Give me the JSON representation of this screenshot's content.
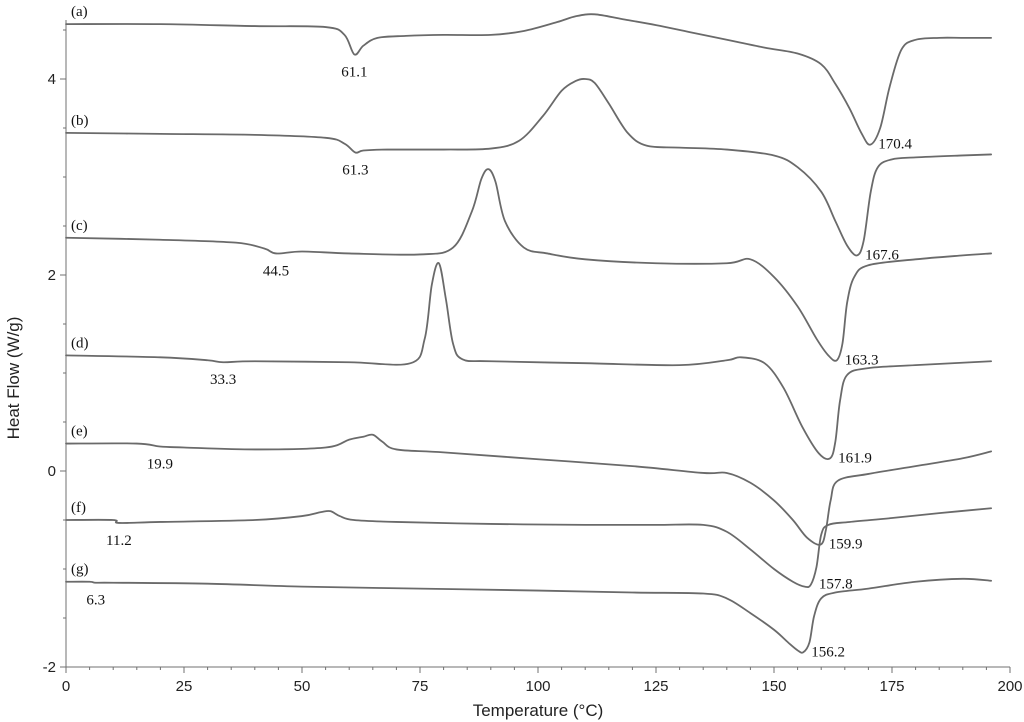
{
  "chart_data": {
    "type": "line",
    "xlabel": "Temperature (°C)",
    "ylabel": "Heat Flow (W/g)",
    "xlim": [
      0,
      200
    ],
    "ylim": [
      -2,
      4.8
    ],
    "xticks": [
      "0",
      "25",
      "50",
      "75",
      "100",
      "125",
      "150",
      "175",
      "200"
    ],
    "yticks": [
      "-2",
      "0",
      "2",
      "4"
    ],
    "grid": false,
    "series": [
      {
        "name": "(a)",
        "label_text": "61.1",
        "peak_label": "170.4",
        "x": [
          0,
          20,
          40,
          55,
          59,
          61.1,
          63,
          66,
          72,
          80,
          90,
          97,
          104,
          108,
          112,
          118,
          125,
          132,
          140,
          148,
          155,
          160,
          163,
          166,
          168.5,
          170.4,
          172.5,
          174.5,
          177,
          180,
          185,
          190,
          196
        ],
        "values": [
          4.56,
          4.56,
          4.54,
          4.53,
          4.45,
          4.25,
          4.34,
          4.42,
          4.44,
          4.45,
          4.45,
          4.49,
          4.58,
          4.64,
          4.66,
          4.61,
          4.55,
          4.48,
          4.4,
          4.32,
          4.26,
          4.15,
          3.95,
          3.7,
          3.45,
          3.33,
          3.5,
          3.92,
          4.3,
          4.4,
          4.42,
          4.42,
          4.42
        ]
      },
      {
        "name": "(b)",
        "label_text": "61.3",
        "peak_label": "167.6",
        "x": [
          0,
          20,
          40,
          55,
          59,
          61.3,
          63,
          68,
          80,
          90,
          96,
          101,
          105,
          108,
          110,
          112,
          115,
          119,
          123,
          130,
          140,
          150,
          155,
          160,
          163,
          165.5,
          167.6,
          169,
          170.5,
          172,
          175,
          180,
          190,
          196
        ],
        "values": [
          3.45,
          3.44,
          3.43,
          3.4,
          3.34,
          3.25,
          3.27,
          3.28,
          3.28,
          3.29,
          3.37,
          3.62,
          3.88,
          3.98,
          4.0,
          3.96,
          3.75,
          3.45,
          3.32,
          3.3,
          3.28,
          3.22,
          3.1,
          2.85,
          2.55,
          2.3,
          2.2,
          2.35,
          2.85,
          3.1,
          3.18,
          3.2,
          3.22,
          3.23
        ]
      },
      {
        "name": "(c)",
        "label_text": "44.5",
        "peak_label": "163.3",
        "x": [
          0,
          20,
          36,
          42,
          44.5,
          50,
          60,
          75,
          82,
          86,
          88,
          89.5,
          91,
          93,
          97,
          102,
          110,
          125,
          140,
          145,
          150,
          155,
          159,
          161.5,
          163.3,
          164.5,
          165.5,
          167,
          170,
          180,
          190,
          196
        ],
        "values": [
          2.38,
          2.36,
          2.33,
          2.27,
          2.22,
          2.24,
          2.22,
          2.21,
          2.28,
          2.65,
          2.98,
          3.08,
          2.95,
          2.55,
          2.28,
          2.22,
          2.16,
          2.12,
          2.12,
          2.16,
          1.98,
          1.68,
          1.35,
          1.18,
          1.13,
          1.3,
          1.72,
          1.98,
          2.1,
          2.16,
          2.2,
          2.22
        ]
      },
      {
        "name": "(d)",
        "label_text": "33.3",
        "peak_label": "161.9",
        "x": [
          0,
          20,
          30,
          33.3,
          40,
          60,
          73,
          76,
          77.5,
          79,
          80.5,
          82,
          84,
          90,
          110,
          130,
          140,
          143,
          148,
          152,
          156,
          159.5,
          161.9,
          163,
          164,
          165.5,
          170,
          180,
          196
        ],
        "values": [
          1.18,
          1.16,
          1.13,
          1.11,
          1.12,
          1.11,
          1.1,
          1.35,
          1.9,
          2.12,
          1.75,
          1.3,
          1.14,
          1.12,
          1.1,
          1.08,
          1.13,
          1.16,
          1.1,
          0.85,
          0.45,
          0.18,
          0.13,
          0.3,
          0.72,
          0.98,
          1.05,
          1.08,
          1.12
        ]
      },
      {
        "name": "(e)",
        "label_text": "19.9",
        "peak_label": "159.9",
        "x": [
          0,
          15,
          19.9,
          25,
          40,
          55,
          60,
          63,
          65,
          67,
          70,
          80,
          100,
          120,
          135,
          140,
          145,
          150,
          154,
          157,
          159.9,
          161,
          162,
          163.5,
          170,
          180,
          190,
          196
        ],
        "values": [
          0.28,
          0.28,
          0.25,
          0.24,
          0.22,
          0.24,
          0.32,
          0.35,
          0.37,
          0.3,
          0.22,
          0.19,
          0.12,
          0.05,
          -0.02,
          -0.02,
          -0.12,
          -0.3,
          -0.5,
          -0.68,
          -0.75,
          -0.6,
          -0.3,
          -0.1,
          -0.03,
          0.05,
          0.13,
          0.2
        ]
      },
      {
        "name": "(f)",
        "label_text": "11.2",
        "peak_label": "157.8",
        "x": [
          0,
          10,
          11.2,
          20,
          40,
          50,
          54,
          56,
          58,
          61,
          70,
          90,
          110,
          125,
          135,
          140,
          145,
          150,
          154,
          156.5,
          157.8,
          159,
          160,
          161.5,
          166,
          175,
          185,
          196
        ],
        "values": [
          -0.5,
          -0.5,
          -0.53,
          -0.52,
          -0.5,
          -0.46,
          -0.42,
          -0.41,
          -0.46,
          -0.5,
          -0.52,
          -0.54,
          -0.55,
          -0.55,
          -0.55,
          -0.62,
          -0.8,
          -1.0,
          -1.13,
          -1.18,
          -1.16,
          -0.98,
          -0.65,
          -0.55,
          -0.52,
          -0.48,
          -0.43,
          -0.38
        ]
      },
      {
        "name": "(g)",
        "label_text": "6.3",
        "peak_label": "156.2",
        "x": [
          0,
          5,
          6.3,
          10,
          30,
          50,
          75,
          100,
          120,
          135,
          140,
          145,
          150,
          153,
          155,
          156.2,
          157.5,
          158.5,
          160,
          163,
          170,
          180,
          190,
          196
        ],
        "values": [
          -1.13,
          -1.13,
          -1.14,
          -1.14,
          -1.15,
          -1.18,
          -1.2,
          -1.22,
          -1.24,
          -1.25,
          -1.3,
          -1.45,
          -1.62,
          -1.75,
          -1.83,
          -1.85,
          -1.75,
          -1.48,
          -1.3,
          -1.24,
          -1.2,
          -1.13,
          -1.1,
          -1.12
        ]
      }
    ]
  },
  "colors": {
    "curve": "#6a6a6a",
    "axis": "#707070",
    "text": "#222222"
  }
}
